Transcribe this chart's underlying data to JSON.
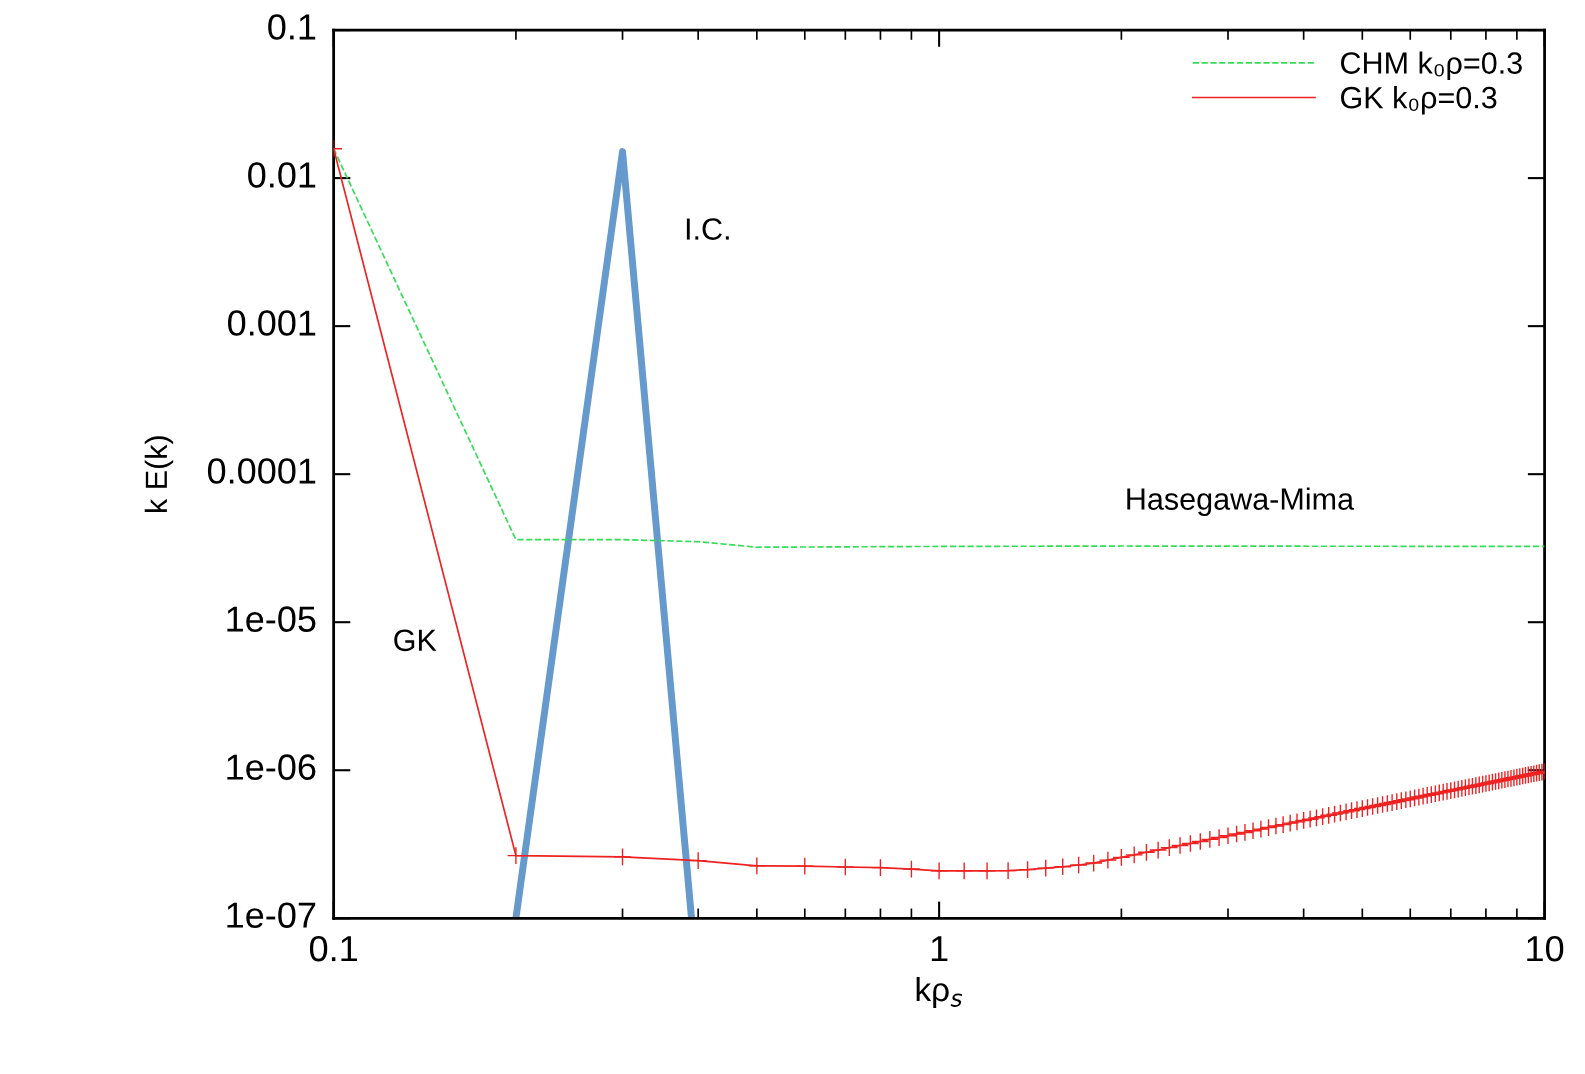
{
  "chart_data": {
    "type": "line",
    "xlabel": "kρ$_{s}$",
    "ylabel": "k E(k)",
    "log": "xy",
    "grid": false,
    "legend": "top right",
    "xlim": [
      0.1,
      10
    ],
    "xticks": [
      0.1,
      1,
      10
    ],
    "ylim": [
      1e-07,
      0.1
    ],
    "yticks": [
      {
        "value": 1e-07,
        "label": "1e-07"
      },
      {
        "value": 1e-06,
        "label": "1e-06"
      },
      {
        "value": 1e-05,
        "label": "1e-05"
      },
      0.0001,
      0.001,
      0.01,
      0.1
    ],
    "series": [
      {
        "name": "CHM k₀ρ=0.3",
        "color": "#33dd55",
        "line_style": "dashed",
        "marker": "none",
        "x": [
          0.1,
          0.2,
          0.3,
          0.4,
          0.5,
          1,
          2,
          10
        ],
        "values": [
          0.0158,
          3.61e-05,
          3.61e-05,
          3.5e-05,
          3.21e-05,
          3.25e-05,
          3.27e-05,
          3.25e-05
        ]
      },
      {
        "name": "GK k₀ρ=0.3",
        "color": "#ee2222",
        "line_style": "solid",
        "marker": "cross",
        "x": [
          0.1,
          0.2,
          0.3,
          0.4,
          0.5,
          0.6,
          0.7,
          0.8,
          0.9,
          1.0,
          1.1,
          1.2,
          1.3,
          1.4,
          1.5,
          1.6,
          1.7,
          1.8,
          1.9,
          2.0,
          2.1,
          2.2,
          2.3,
          2.4,
          2.5,
          2.6,
          2.7,
          2.8,
          2.9,
          3.0,
          3.1,
          3.2,
          3.3,
          3.4,
          3.5,
          3.6,
          3.7,
          3.8,
          3.9,
          4.0,
          4.1,
          4.2,
          4.3,
          4.4,
          4.5,
          4.6,
          4.7,
          4.8,
          4.9,
          5.0,
          5.1,
          5.2,
          5.3,
          5.4,
          5.5,
          5.6,
          5.7,
          5.8,
          5.9,
          6.0,
          6.1,
          6.2,
          6.3,
          6.4,
          6.5,
          6.6,
          6.7,
          6.8,
          6.9,
          7.0,
          7.1,
          7.2,
          7.3,
          7.4,
          7.5,
          7.6,
          7.7,
          7.8,
          7.9,
          8.0,
          8.1,
          8.2,
          8.3,
          8.4,
          8.5,
          8.6,
          8.7,
          8.8,
          8.9,
          9.0,
          9.1,
          9.2,
          9.3,
          9.4,
          9.5,
          9.6,
          9.7,
          9.8,
          9.9,
          10
        ],
        "values": [
          0.0158,
          2.65e-07,
          2.6e-07,
          2.45e-07,
          2.26e-07,
          2.25e-07,
          2.22e-07,
          2.2e-07,
          2.15e-07,
          2.09e-07,
          2.09e-07,
          2.09e-07,
          2.1e-07,
          2.13e-07,
          2.18e-07,
          2.23e-07,
          2.29e-07,
          2.36e-07,
          2.47e-07,
          2.58e-07,
          2.68e-07,
          2.79e-07,
          2.89e-07,
          3e-07,
          3.1e-07,
          3.2e-07,
          3.3e-07,
          3.41e-07,
          3.51e-07,
          3.61e-07,
          3.71e-07,
          3.8e-07,
          3.9e-07,
          4e-07,
          4.1e-07,
          4.2e-07,
          4.29e-07,
          4.39e-07,
          4.48e-07,
          4.58e-07,
          4.67e-07,
          4.77e-07,
          4.86e-07,
          4.96e-07,
          5.05e-07,
          5.14e-07,
          5.23e-07,
          5.33e-07,
          5.42e-07,
          5.51e-07,
          5.6e-07,
          5.69e-07,
          5.78e-07,
          5.87e-07,
          5.96e-07,
          6.05e-07,
          6.14e-07,
          6.23e-07,
          6.32e-07,
          6.41e-07,
          6.5e-07,
          6.59e-07,
          6.68e-07,
          6.76e-07,
          6.85e-07,
          6.94e-07,
          7.03e-07,
          7.11e-07,
          7.2e-07,
          7.29e-07,
          7.37e-07,
          7.46e-07,
          7.54e-07,
          7.63e-07,
          7.71e-07,
          7.8e-07,
          7.88e-07,
          7.97e-07,
          8.06e-07,
          8.14e-07,
          8.22e-07,
          8.31e-07,
          8.39e-07,
          8.48e-07,
          8.56e-07,
          8.64e-07,
          8.73e-07,
          8.81e-07,
          8.89e-07,
          8.98e-07,
          9.06e-07,
          9.14e-07,
          9.22e-07,
          9.31e-07,
          9.39e-07,
          9.47e-07,
          9.55e-07,
          9.63e-07,
          9.71e-07,
          9.8e-07
        ]
      },
      {
        "color": "#6699cc",
        "line_style": "solid",
        "marker": "none",
        "x": [
          0.2,
          0.3,
          0.39
        ],
        "values": [
          1e-07,
          0.0151,
          1e-07
        ]
      }
    ],
    "annotations": [
      "I.C.",
      "Hasegawa-Mima",
      "GK"
    ]
  }
}
